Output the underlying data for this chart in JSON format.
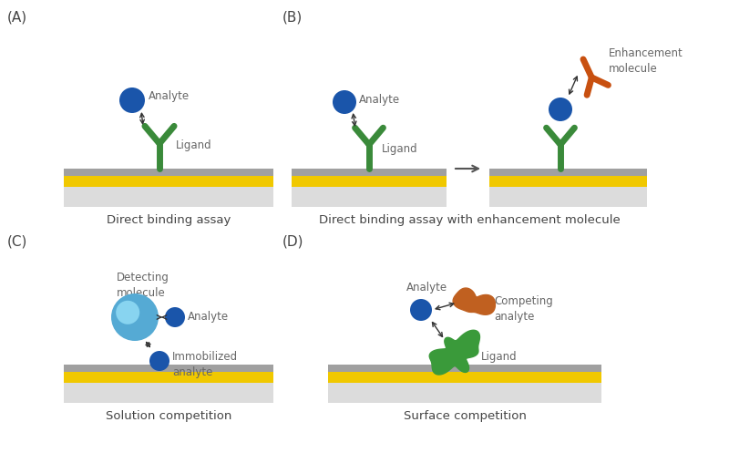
{
  "bg_color": "#ffffff",
  "text_color": "#666666",
  "panel_label_color": "#444444",
  "green_color": "#3a8a3a",
  "blue_analyte": "#1a55aa",
  "light_blue": "#55aad4",
  "light_blue2": "#88ccee",
  "orange_color": "#c85010",
  "gray_surface_top": "#aaaaaa",
  "gray_surface_mid": "#cccccc",
  "yellow_color": "#f5c800",
  "light_gray": "#e0e0e0",
  "panel_labels": [
    "(A)",
    "(B)",
    "(C)",
    "(D)"
  ],
  "panel_titles": [
    "Direct binding assay",
    "Direct binding assay with enhancement molecule",
    "Solution competition",
    "Surface competition"
  ]
}
